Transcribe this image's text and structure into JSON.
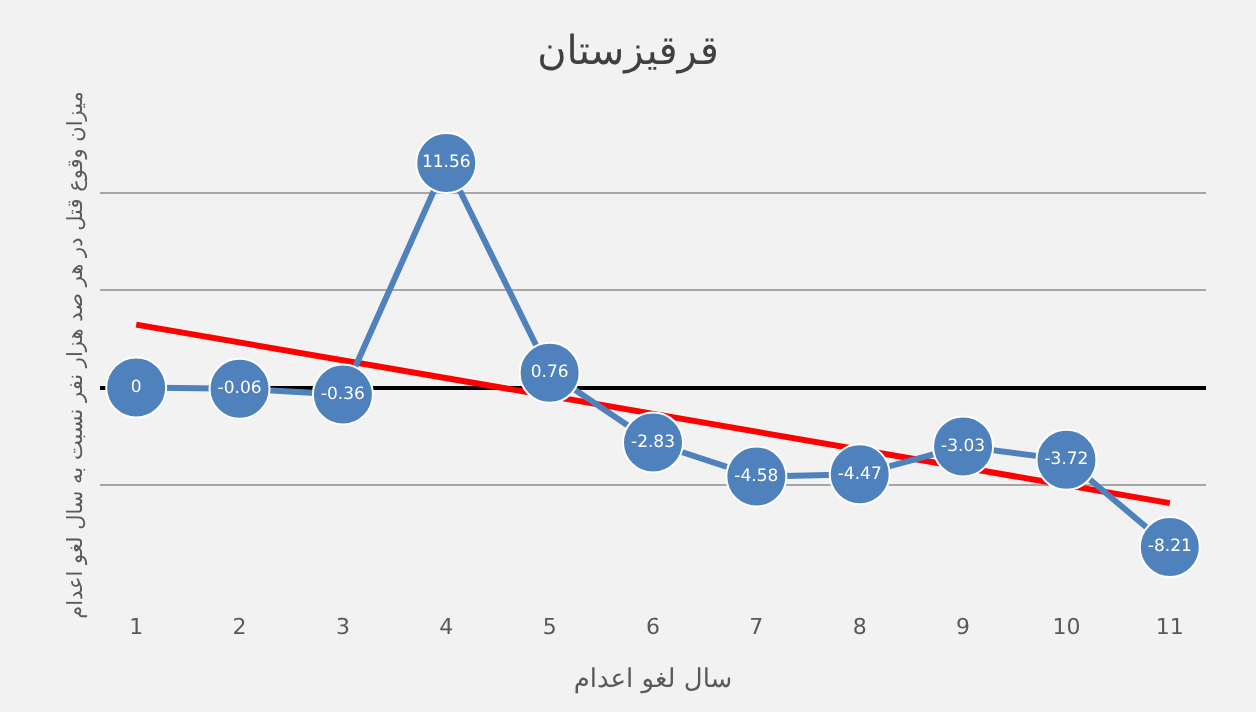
{
  "chart_data": {
    "type": "line",
    "title": "قرقیزستان",
    "xlabel": "سال لغو اعدام",
    "ylabel": "میزان وقوع قتل در هر صد هزار نفر نسبت به سال لغو اعدام",
    "categories": [
      "1",
      "2",
      "3",
      "4",
      "5",
      "6",
      "7",
      "8",
      "9",
      "10",
      "11"
    ],
    "series": [
      {
        "color": "#4f81bd",
        "value_labels": [
          "0",
          "-0.06",
          "-0.36",
          "11.56",
          "0.76",
          "-2.83",
          "-4.58",
          "-4.47",
          "-3.03",
          "-3.72",
          "-8.21"
        ],
        "values": [
          0,
          -0.06,
          -0.36,
          11.56,
          0.76,
          -2.83,
          -4.58,
          -4.47,
          -3.03,
          -3.72,
          -8.21
        ]
      },
      {
        "type": "line",
        "color": "#ff0000",
        "values": [
          3.24,
          null,
          null,
          null,
          null,
          null,
          null,
          null,
          null,
          null,
          -5.95
        ],
        "marker": "none"
      }
    ],
    "yticks": [
      {
        "value": -5,
        "label": null
      },
      {
        "value": 0,
        "label": null
      },
      {
        "value": 5,
        "label": null
      },
      {
        "value": 10,
        "label": null
      }
    ],
    "tick_labels": "x",
    "grid": "y",
    "marker": "circle",
    "line_style": "solid"
  }
}
